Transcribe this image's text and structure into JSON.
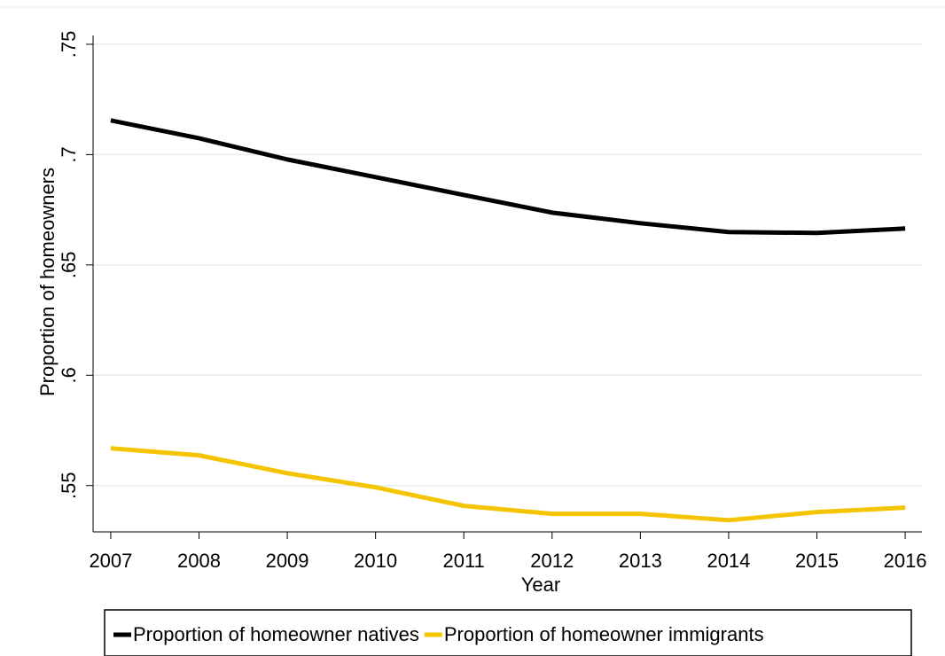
{
  "chart_data": {
    "type": "line",
    "x_label": "Year",
    "y_label": "Proportion of homeowners",
    "x": [
      2007,
      2008,
      2009,
      2010,
      2011,
      2012,
      2013,
      2014,
      2015,
      2016
    ],
    "series": [
      {
        "name": "Proportion of homeowner natives",
        "color": "#000000",
        "values": [
          0.7155,
          0.7074,
          0.6978,
          0.6898,
          0.6817,
          0.6737,
          0.6689,
          0.6649,
          0.6645,
          0.6665
        ]
      },
      {
        "name": "Proportion of homeowner immigrants",
        "color": "#f5c400",
        "values": [
          0.5669,
          0.5637,
          0.5556,
          0.5492,
          0.5408,
          0.5372,
          0.5372,
          0.5343,
          0.538,
          0.54
        ]
      }
    ],
    "xlim": [
      2006.8,
      2016.19
    ],
    "xticks": [
      2007,
      2008,
      2009,
      2010,
      2011,
      2012,
      2013,
      2014,
      2015,
      2016
    ],
    "ylim": [
      0.529,
      0.754
    ],
    "yticks": [
      {
        "value": 0.55,
        "label": ".55"
      },
      {
        "value": 0.6,
        "label": ".6"
      },
      {
        "value": 0.65,
        "label": ".65"
      },
      {
        "value": 0.7,
        "label": ".7"
      },
      {
        "value": 0.75,
        "label": ".75"
      }
    ],
    "grid": true,
    "legend": "bottom"
  }
}
